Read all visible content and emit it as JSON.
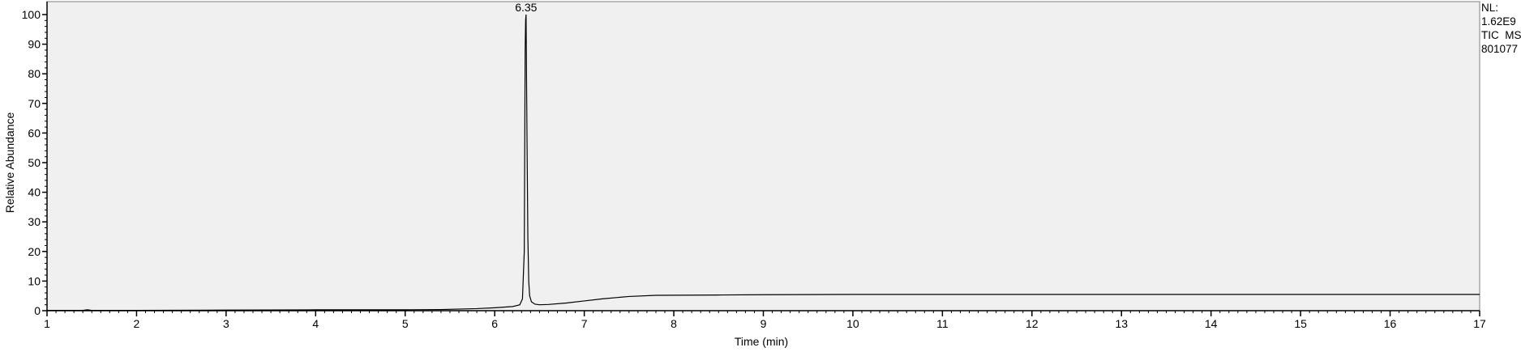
{
  "chart_data": {
    "type": "line",
    "xlabel": "Time (min)",
    "ylabel": "Relative Abundance",
    "xlim": [
      1,
      17
    ],
    "ylim": [
      0,
      100
    ],
    "x_ticks": [
      1,
      2,
      3,
      4,
      5,
      6,
      7,
      8,
      9,
      10,
      11,
      12,
      13,
      14,
      15,
      16,
      17
    ],
    "y_ticks": [
      0,
      10,
      20,
      30,
      40,
      50,
      60,
      70,
      80,
      90,
      100
    ],
    "grid": false,
    "series": [
      {
        "x": [
          1.0,
          1.4,
          1.45,
          1.5,
          2.0,
          3.0,
          4.0,
          5.0,
          5.4,
          5.8,
          6.0,
          6.2,
          6.28,
          6.31,
          6.33,
          6.34,
          6.345,
          6.35,
          6.36,
          6.37,
          6.38,
          6.39,
          6.41,
          6.45,
          6.5,
          6.6,
          6.8,
          7.0,
          7.2,
          7.5,
          7.8,
          8.5,
          9.0,
          10.0,
          11.0,
          12.0,
          13.0,
          14.0,
          15.0,
          16.0,
          17.0
        ],
        "y": [
          0.1,
          0.1,
          0.3,
          0.1,
          0.1,
          0.2,
          0.3,
          0.3,
          0.4,
          0.7,
          1.0,
          1.4,
          2.0,
          4.0,
          20.0,
          88.0,
          98.0,
          100.0,
          60.0,
          25.0,
          10.0,
          5.0,
          3.0,
          2.2,
          2.0,
          2.1,
          2.6,
          3.3,
          4.0,
          4.8,
          5.2,
          5.3,
          5.4,
          5.5,
          5.5,
          5.5,
          5.5,
          5.5,
          5.5,
          5.5,
          5.5
        ],
        "color": "#000000"
      }
    ],
    "annotations": [
      {
        "x": 6.35,
        "y": 100,
        "text": "6.35"
      }
    ],
    "info": {
      "nl_label": "NL:",
      "nl_value": "1.62E9",
      "trace": "TIC  MS",
      "sample": "801077"
    },
    "plot_background": "#f0f0f0",
    "page_background": "#ffffff"
  }
}
